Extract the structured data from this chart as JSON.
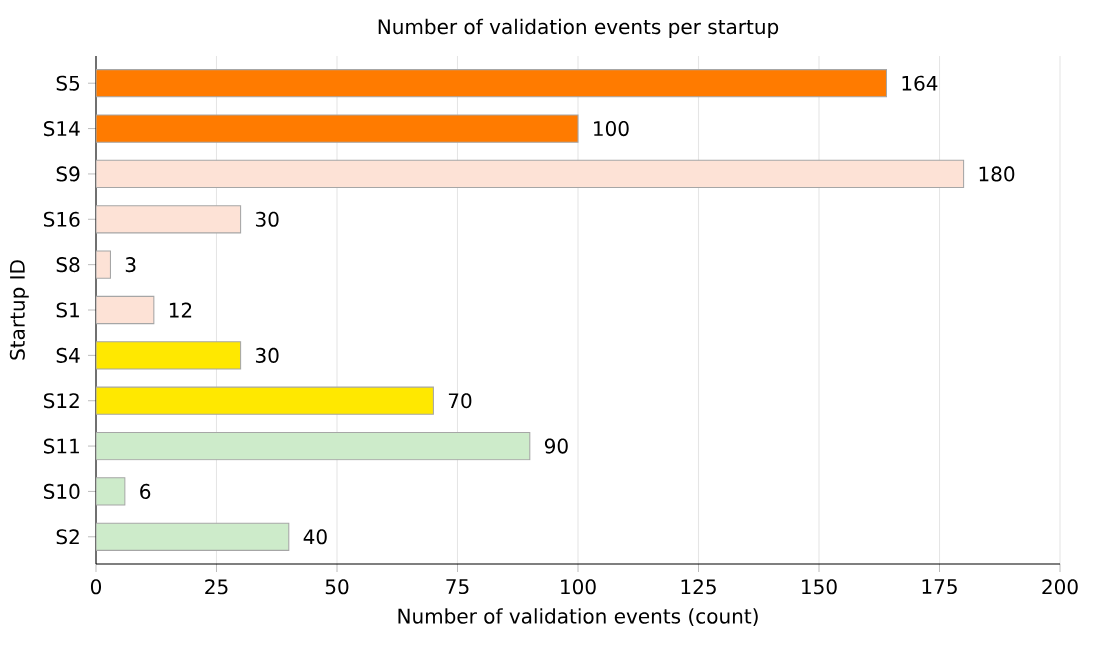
{
  "chart_data": {
    "type": "bar",
    "orientation": "horizontal",
    "title": "Number of validation events per startup",
    "xlabel": "Number of validation events (count)",
    "ylabel": "Startup ID",
    "categories": [
      "S5",
      "S14",
      "S9",
      "S16",
      "S8",
      "S1",
      "S4",
      "S12",
      "S11",
      "S10",
      "S2"
    ],
    "values": [
      164,
      100,
      180,
      30,
      3,
      12,
      30,
      70,
      90,
      6,
      40
    ],
    "colors": [
      "#ff7b00",
      "#ff7b00",
      "#fde2d6",
      "#fde2d6",
      "#fde2d6",
      "#fde2d6",
      "#ffe800",
      "#ffe800",
      "#cdebca",
      "#cdebca",
      "#cdebca"
    ],
    "xlim": [
      0,
      200
    ],
    "xticks": [
      0,
      25,
      50,
      75,
      100,
      125,
      150,
      175,
      200
    ],
    "grid": "x",
    "data_labels": true
  }
}
